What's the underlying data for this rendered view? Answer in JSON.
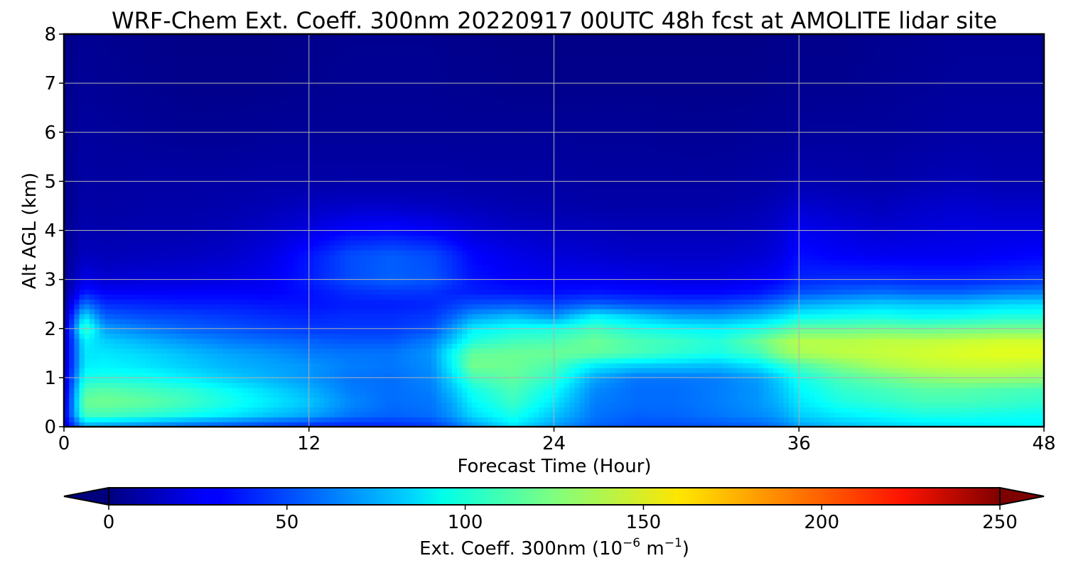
{
  "chart_data": {
    "type": "heatmap",
    "title": "WRF-Chem Ext. Coeff. 300nm  20220917 00UTC 48h fcst at AMOLITE lidar site",
    "xlabel": "Forecast Time (Hour)",
    "ylabel": "Alt AGL (km)",
    "xlim": [
      0,
      48
    ],
    "ylim": [
      0,
      8
    ],
    "xticks": [
      "0",
      "12",
      "24",
      "36",
      "48"
    ],
    "yticks": [
      "0",
      "1",
      "2",
      "3",
      "4",
      "5",
      "6",
      "7",
      "8"
    ],
    "grid": true,
    "colormap": "jet",
    "x": [
      0,
      1,
      2,
      4,
      6,
      8,
      10,
      12,
      14,
      16,
      18,
      19,
      20,
      22,
      24,
      26,
      28,
      30,
      32,
      34,
      35,
      36,
      38,
      40,
      42,
      44,
      46,
      48
    ],
    "y": [
      0,
      0.25,
      0.5,
      0.75,
      1,
      1.25,
      1.5,
      1.75,
      2,
      2.25,
      2.5,
      2.75,
      3,
      3.5,
      4,
      4.5,
      5,
      6,
      7,
      8
    ],
    "z": [
      [
        20,
        70,
        68,
        62,
        55,
        50,
        45,
        40,
        38,
        40,
        45,
        55,
        68,
        88,
        70,
        55,
        50,
        50,
        52,
        55,
        60,
        70,
        78,
        82,
        86,
        88,
        90,
        92
      ],
      [
        25,
        110,
        110,
        105,
        98,
        90,
        80,
        72,
        60,
        55,
        58,
        68,
        85,
        100,
        80,
        60,
        55,
        56,
        60,
        65,
        70,
        82,
        90,
        95,
        100,
        100,
        98,
        96
      ],
      [
        22,
        120,
        122,
        118,
        110,
        100,
        90,
        80,
        65,
        58,
        60,
        72,
        92,
        108,
        88,
        62,
        58,
        58,
        62,
        68,
        75,
        88,
        100,
        105,
        110,
        110,
        108,
        105
      ],
      [
        20,
        112,
        115,
        110,
        105,
        95,
        85,
        75,
        62,
        58,
        62,
        78,
        98,
        112,
        95,
        65,
        58,
        58,
        62,
        68,
        78,
        92,
        105,
        110,
        115,
        115,
        112,
        110
      ],
      [
        18,
        98,
        100,
        98,
        90,
        82,
        75,
        68,
        60,
        58,
        64,
        85,
        110,
        118,
        105,
        72,
        60,
        60,
        62,
        70,
        82,
        98,
        112,
        120,
        128,
        132,
        132,
        130
      ],
      [
        16,
        90,
        92,
        88,
        82,
        76,
        72,
        68,
        62,
        60,
        66,
        92,
        122,
        120,
        112,
        90,
        82,
        80,
        78,
        88,
        100,
        112,
        125,
        135,
        140,
        142,
        142,
        140
      ],
      [
        15,
        88,
        88,
        84,
        78,
        72,
        68,
        62,
        60,
        60,
        68,
        95,
        118,
        120,
        120,
        118,
        112,
        105,
        100,
        110,
        125,
        135,
        140,
        142,
        145,
        148,
        150,
        150
      ],
      [
        14,
        92,
        82,
        75,
        68,
        62,
        58,
        55,
        52,
        52,
        62,
        80,
        102,
        110,
        112,
        120,
        112,
        108,
        102,
        118,
        130,
        138,
        138,
        140,
        140,
        142,
        145,
        145
      ],
      [
        12,
        110,
        70,
        62,
        55,
        52,
        48,
        45,
        45,
        45,
        50,
        68,
        90,
        98,
        100,
        110,
        100,
        95,
        92,
        100,
        108,
        118,
        118,
        120,
        118,
        120,
        122,
        122
      ],
      [
        10,
        88,
        55,
        50,
        48,
        45,
        42,
        40,
        42,
        42,
        45,
        55,
        70,
        78,
        68,
        92,
        82,
        72,
        70,
        78,
        85,
        95,
        98,
        100,
        96,
        98,
        102,
        102
      ],
      [
        8,
        60,
        42,
        40,
        38,
        38,
        36,
        35,
        38,
        38,
        40,
        45,
        50,
        52,
        48,
        55,
        50,
        48,
        48,
        55,
        62,
        72,
        78,
        82,
        80,
        80,
        85,
        86
      ],
      [
        6,
        38,
        30,
        30,
        30,
        30,
        30,
        35,
        42,
        45,
        44,
        40,
        38,
        36,
        34,
        36,
        34,
        32,
        32,
        36,
        42,
        50,
        55,
        58,
        55,
        55,
        60,
        62
      ],
      [
        5,
        25,
        20,
        22,
        22,
        24,
        28,
        38,
        50,
        55,
        52,
        45,
        36,
        30,
        28,
        28,
        26,
        24,
        24,
        28,
        32,
        40,
        42,
        42,
        40,
        40,
        42,
        45
      ],
      [
        4,
        16,
        14,
        15,
        16,
        18,
        24,
        36,
        50,
        54,
        50,
        42,
        32,
        26,
        22,
        20,
        18,
        18,
        18,
        20,
        24,
        34,
        30,
        28,
        28,
        28,
        30,
        32
      ],
      [
        4,
        12,
        11,
        12,
        12,
        14,
        18,
        24,
        32,
        34,
        30,
        26,
        22,
        18,
        16,
        15,
        14,
        14,
        14,
        16,
        20,
        28,
        24,
        20,
        22,
        24,
        24,
        24
      ],
      [
        3,
        10,
        9,
        10,
        10,
        11,
        13,
        16,
        18,
        18,
        16,
        15,
        14,
        12,
        11,
        10,
        10,
        10,
        10,
        12,
        15,
        20,
        17,
        15,
        18,
        20,
        18,
        18
      ],
      [
        3,
        9,
        8,
        9,
        9,
        9,
        10,
        10,
        10,
        10,
        10,
        10,
        9,
        9,
        9,
        8,
        8,
        8,
        8,
        9,
        10,
        12,
        11,
        10,
        12,
        14,
        12,
        12
      ],
      [
        3,
        8,
        7,
        6,
        5,
        5,
        6,
        6,
        6,
        6,
        6,
        6,
        6,
        6,
        6,
        6,
        6,
        5,
        5,
        6,
        6,
        7,
        7,
        7,
        8,
        9,
        9,
        9
      ],
      [
        3,
        6,
        5,
        4,
        3,
        3,
        3,
        4,
        5,
        5,
        5,
        4,
        4,
        3,
        3,
        3,
        3,
        3,
        3,
        3,
        4,
        4,
        4,
        5,
        6,
        7,
        7,
        7
      ],
      [
        2,
        5,
        4,
        3,
        2,
        2,
        2,
        3,
        4,
        4,
        4,
        3,
        3,
        2,
        2,
        2,
        2,
        2,
        2,
        2,
        3,
        3,
        3,
        4,
        5,
        6,
        6,
        6
      ]
    ],
    "colorbar": {
      "label_main": "Ext. Coeff. 300nm  (10",
      "label_exp1": "−6",
      "label_mid": " m",
      "label_exp2": "−1",
      "label_end": ")",
      "min": 0,
      "max": 250,
      "ticks": [
        "0",
        "50",
        "100",
        "150",
        "200",
        "250"
      ],
      "extend": "both"
    }
  }
}
